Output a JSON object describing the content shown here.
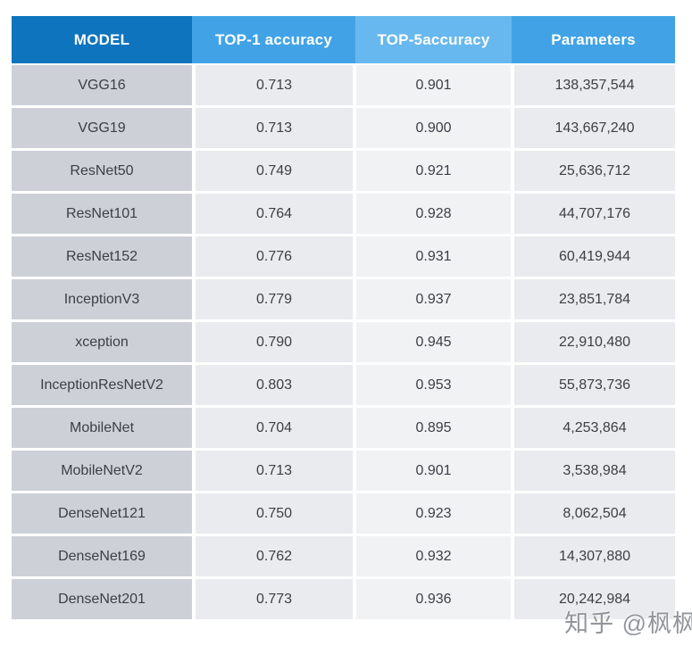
{
  "page": {
    "watermark": "知乎 @枫枫"
  },
  "colors": {
    "header_model_bg": "#0d74bd",
    "header_mid_bg": "#41a3e6",
    "header_light_bg": "#67b8ee",
    "cell_model_bg": "#cdd1d7",
    "cell_mid_bg": "#e9ebee",
    "cell_light_bg": "#f1f2f4",
    "header_text": "#ffffff",
    "body_text": "#3c3f45",
    "page_bg": "#ffffff"
  },
  "chart_data": {
    "type": "table",
    "title": "",
    "columns": [
      "MODEL",
      "TOP-1 accuracy",
      "TOP-5accuracy",
      "Parameters"
    ],
    "rows": [
      [
        "VGG16",
        "0.713",
        "0.901",
        "138,357,544"
      ],
      [
        "VGG19",
        "0.713",
        "0.900",
        "143,667,240"
      ],
      [
        "ResNet50",
        "0.749",
        "0.921",
        "25,636,712"
      ],
      [
        "ResNet101",
        "0.764",
        "0.928",
        "44,707,176"
      ],
      [
        "ResNet152",
        "0.776",
        "0.931",
        "60,419,944"
      ],
      [
        "InceptionV3",
        "0.779",
        "0.937",
        "23,851,784"
      ],
      [
        "xception",
        "0.790",
        "0.945",
        "22,910,480"
      ],
      [
        "InceptionResNetV2",
        "0.803",
        "0.953",
        "55,873,736"
      ],
      [
        "MobileNet",
        "0.704",
        "0.895",
        "4,253,864"
      ],
      [
        "MobileNetV2",
        "0.713",
        "0.901",
        "3,538,984"
      ],
      [
        "DenseNet121",
        "0.750",
        "0.923",
        "8,062,504"
      ],
      [
        "DenseNet169",
        "0.762",
        "0.932",
        "14,307,880"
      ],
      [
        "DenseNet201",
        "0.773",
        "0.936",
        "20,242,984"
      ]
    ]
  }
}
